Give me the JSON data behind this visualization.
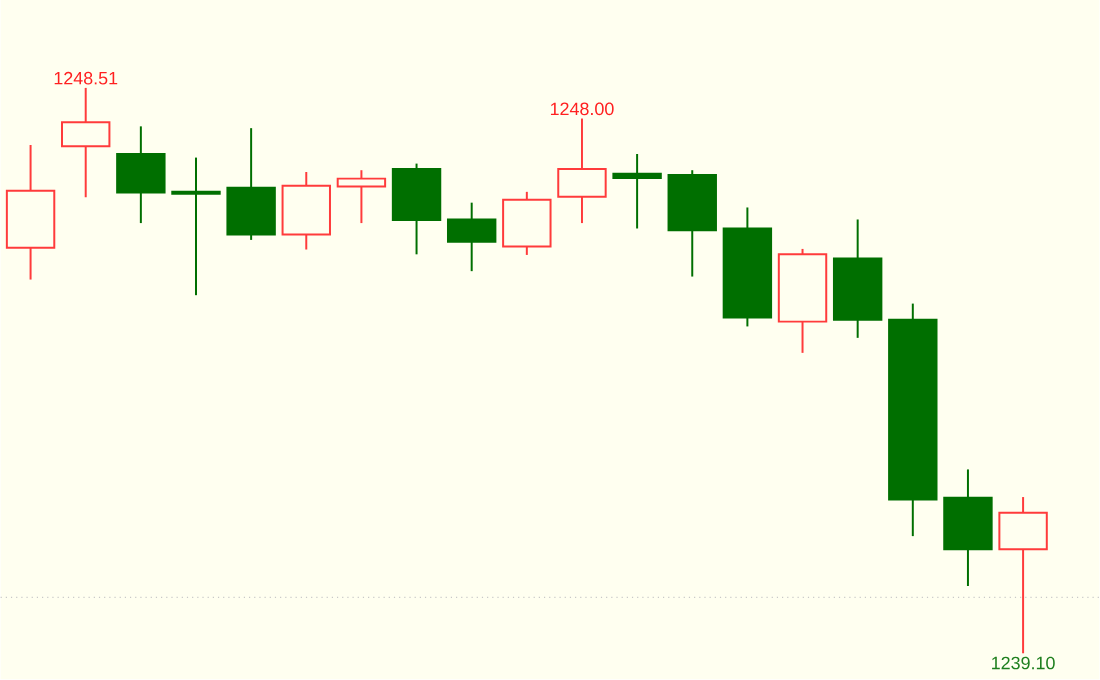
{
  "chart_data": {
    "type": "candlestick",
    "categories": [
      null,
      null,
      null,
      null,
      null,
      null,
      null,
      null,
      null,
      null,
      null,
      null,
      null,
      null,
      null,
      null,
      null,
      null,
      null
    ],
    "ohlc": [
      [
        1245.85,
        1247.56,
        1245.32,
        1246.8
      ],
      [
        1247.54,
        1248.51,
        1246.69,
        1247.94
      ],
      [
        1247.41,
        1247.87,
        1246.26,
        1246.77
      ],
      [
        1246.78,
        1247.35,
        1245.06,
        1246.75
      ],
      [
        1246.85,
        1247.84,
        1245.98,
        1246.07
      ],
      [
        1246.07,
        1247.11,
        1245.82,
        1246.88
      ],
      [
        1246.87,
        1247.14,
        1246.26,
        1247.0
      ],
      [
        1247.16,
        1247.25,
        1245.74,
        1246.31
      ],
      [
        1246.32,
        1246.6,
        1245.46,
        1245.95
      ],
      [
        1245.87,
        1246.78,
        1245.73,
        1246.65
      ],
      [
        1246.7,
        1248.0,
        1246.26,
        1247.16
      ],
      [
        1247.08,
        1247.41,
        1246.17,
        1247.01
      ],
      [
        1247.06,
        1247.14,
        1245.37,
        1246.14
      ],
      [
        1246.17,
        1246.52,
        1244.54,
        1244.69
      ],
      [
        1244.62,
        1245.83,
        1244.1,
        1245.74
      ],
      [
        1245.67,
        1246.32,
        1244.35,
        1244.65
      ],
      [
        1244.65,
        1244.92,
        1241.05,
        1241.66
      ],
      [
        1241.69,
        1242.16,
        1240.22,
        1240.83
      ],
      [
        1240.83,
        1241.7,
        1239.1,
        1241.44
      ]
    ],
    "colors": [
      "#ff3b3b",
      "#ff3b3b",
      "#006f00",
      "#006f00",
      "#006f00",
      "#ff3b3b",
      "#ff3b3b",
      "#006f00",
      "#006f00",
      "#ff3b3b",
      "#ff3b3b",
      "#006f00",
      "#006f00",
      "#006f00",
      "#ff3b3b",
      "#006f00",
      "#006f00",
      "#006f00",
      "#ff3b3b"
    ],
    "ref_lines": [
      {
        "axis": "y",
        "value": 1240.03,
        "color": "#c8c8c8",
        "line_style": "dotted"
      }
    ],
    "annotations": [
      {
        "text": "1248.51",
        "y": 1248.51
      },
      {
        "text": "1248.00",
        "y": 1248.0
      },
      {
        "text": "1239.10",
        "y": 1239.1
      }
    ]
  }
}
